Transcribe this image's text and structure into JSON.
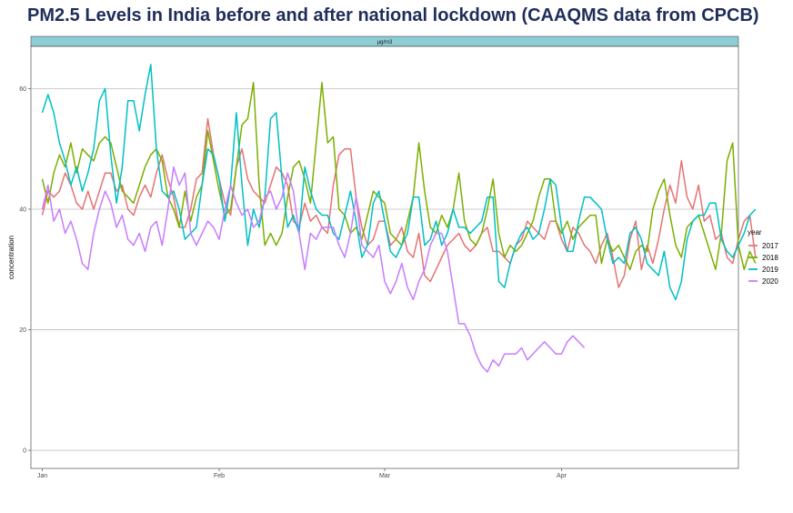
{
  "chart_data": {
    "type": "line",
    "title": "PM2.5 Levels in India before and after national lockdown (CAAQMS data from CPCB)",
    "facet_label": "µg/m3",
    "ylabel": "concentration",
    "xlabel": "",
    "legend_title": "year",
    "legend_position": "right",
    "grid": true,
    "ylim": [
      -3,
      67
    ],
    "xlim": [
      -2,
      122
    ],
    "y_ticks": [
      0,
      20,
      40,
      60
    ],
    "x_ticks": [
      {
        "label": "Jan",
        "day": 0
      },
      {
        "label": "Feb",
        "day": 31
      },
      {
        "label": "Mar",
        "day": 60
      },
      {
        "label": "Apr",
        "day": 91
      }
    ],
    "x_unit": "day of year (Jan 1 = 0)",
    "series": [
      {
        "name": "2017",
        "color": "#e57373",
        "values": [
          39,
          43,
          42,
          43,
          46,
          44,
          41,
          40,
          43,
          40,
          43,
          46,
          46,
          43,
          44,
          40,
          39,
          42,
          44,
          42,
          46,
          49,
          45,
          42,
          37,
          37,
          40,
          45,
          46,
          55,
          49,
          45,
          41,
          39,
          47,
          50,
          45,
          43,
          42,
          41,
          44,
          47,
          46,
          44,
          38,
          37,
          41,
          38,
          39,
          37,
          36,
          44,
          49,
          50,
          50,
          42,
          37,
          34,
          35,
          38,
          38,
          34,
          35,
          37,
          33,
          32,
          36,
          29,
          28,
          30,
          32,
          34,
          35,
          36,
          34,
          33,
          34,
          36,
          37,
          33,
          33,
          32,
          31,
          34,
          35,
          38,
          37,
          36,
          35,
          38,
          38,
          35,
          33,
          37,
          36,
          34,
          33,
          31,
          34,
          36,
          32,
          27,
          29,
          35,
          38,
          30,
          34,
          31,
          35,
          40,
          44,
          41,
          48,
          42,
          40,
          44,
          38,
          39,
          35,
          36,
          32,
          31,
          35,
          38,
          39,
          32
        ]
      },
      {
        "name": "2018",
        "color": "#7cae00",
        "values": [
          45,
          41,
          46,
          49,
          47,
          51,
          46,
          50,
          49,
          48,
          51,
          52,
          51,
          47,
          43,
          42,
          41,
          44,
          47,
          49,
          50,
          48,
          42,
          40,
          37,
          43,
          38,
          42,
          44,
          53,
          48,
          43,
          39,
          40,
          47,
          54,
          55,
          61,
          44,
          34,
          36,
          34,
          36,
          42,
          47,
          48,
          45,
          41,
          51,
          61,
          51,
          52,
          40,
          39,
          36,
          37,
          35,
          39,
          43,
          42,
          41,
          36,
          35,
          34,
          38,
          42,
          51,
          43,
          37,
          36,
          39,
          37,
          40,
          46,
          38,
          35,
          34,
          36,
          40,
          45,
          36,
          32,
          34,
          33,
          34,
          36,
          38,
          42,
          45,
          45,
          38,
          36,
          38,
          35,
          37,
          38,
          39,
          39,
          31,
          35,
          33,
          34,
          32,
          30,
          33,
          34,
          33,
          40,
          43,
          45,
          39,
          34,
          32,
          37,
          38,
          39,
          36,
          33,
          30,
          36,
          48,
          51,
          34,
          30,
          33,
          31
        ]
      },
      {
        "name": "2019",
        "color": "#00bfc4",
        "values": [
          56,
          59,
          56,
          51,
          48,
          44,
          47,
          43,
          46,
          50,
          58,
          60,
          49,
          41,
          47,
          58,
          58,
          53,
          59,
          64,
          50,
          43,
          42,
          43,
          40,
          35,
          36,
          37,
          44,
          50,
          49,
          45,
          38,
          44,
          56,
          44,
          34,
          40,
          37,
          42,
          55,
          56,
          45,
          37,
          39,
          36,
          47,
          43,
          40,
          39,
          39,
          36,
          35,
          39,
          43,
          38,
          32,
          34,
          41,
          43,
          38,
          33,
          32,
          34,
          36,
          42,
          42,
          34,
          35,
          38,
          34,
          36,
          40,
          37,
          37,
          36,
          37,
          38,
          42,
          42,
          28,
          27,
          31,
          34,
          36,
          37,
          35,
          36,
          40,
          45,
          44,
          37,
          33,
          33,
          38,
          42,
          42,
          41,
          40,
          35,
          31,
          32,
          31,
          36,
          37,
          35,
          31,
          30,
          29,
          33,
          27,
          25,
          28,
          35,
          38,
          39,
          39,
          41,
          41,
          35,
          33,
          32,
          34,
          36,
          39,
          40
        ]
      },
      {
        "name": "2020",
        "color": "#c77cff",
        "values": [
          40,
          44,
          38,
          40,
          36,
          38,
          35,
          31,
          30,
          36,
          40,
          43,
          41,
          37,
          39,
          35,
          34,
          36,
          33,
          37,
          38,
          34,
          40,
          47,
          44,
          46,
          36,
          34,
          36,
          38,
          37,
          35,
          40,
          44,
          41,
          39,
          40,
          37,
          38,
          42,
          43,
          40,
          42,
          46,
          43,
          36,
          30,
          36,
          35,
          37,
          37,
          37,
          34,
          32,
          36,
          42,
          34,
          33,
          32,
          34,
          28,
          26,
          28,
          31,
          27,
          25,
          28,
          30,
          34,
          36,
          36,
          33,
          27,
          21,
          21,
          19,
          16,
          14,
          13,
          15,
          14,
          16,
          16,
          16,
          17,
          15,
          16,
          17,
          18,
          17,
          16,
          16,
          18,
          19,
          18,
          17
        ]
      }
    ]
  }
}
